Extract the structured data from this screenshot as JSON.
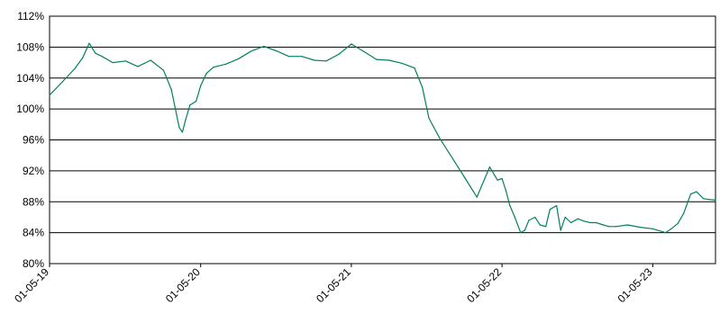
{
  "chart_data": {
    "type": "line",
    "title": "",
    "xlabel": "",
    "ylabel": "",
    "ylim": [
      80,
      112
    ],
    "y_ticks": [
      80,
      84,
      88,
      92,
      96,
      100,
      104,
      108,
      112
    ],
    "y_tick_labels": [
      "80%",
      "84%",
      "88%",
      "92%",
      "96%",
      "100%",
      "104%",
      "108%",
      "112%"
    ],
    "x_tick_dates": [
      "2019-05-01",
      "2020-05-01",
      "2021-05-01",
      "2022-05-01",
      "2023-05-01"
    ],
    "x_tick_labels": [
      "01-05-19",
      "01-05-20",
      "01-05-21",
      "01-05-22",
      "01-05-23"
    ],
    "xlim": [
      "2019-05-01",
      "2023-09-30"
    ],
    "grid": "horizontal",
    "legend": "none",
    "line_color": "#008060",
    "series": [
      {
        "x": [
          "2019-05-01",
          "2019-06-01",
          "2019-07-01",
          "2019-07-20",
          "2019-08-05",
          "2019-08-20",
          "2019-09-05",
          "2019-10-01",
          "2019-11-01",
          "2019-12-01",
          "2020-01-01",
          "2020-02-01",
          "2020-02-20",
          "2020-03-10",
          "2020-03-18",
          "2020-03-25",
          "2020-04-05",
          "2020-04-20",
          "2020-05-01",
          "2020-05-15",
          "2020-06-01",
          "2020-07-01",
          "2020-08-01",
          "2020-09-01",
          "2020-10-01",
          "2020-11-01",
          "2020-12-01",
          "2021-01-01",
          "2021-02-01",
          "2021-03-01",
          "2021-04-01",
          "2021-05-01",
          "2021-06-01",
          "2021-07-01",
          "2021-08-01",
          "2021-09-01",
          "2021-10-01",
          "2021-10-20",
          "2021-11-05",
          "2021-12-01",
          "2022-01-01",
          "2022-02-01",
          "2022-03-01",
          "2022-04-01",
          "2022-04-20",
          "2022-05-01",
          "2022-05-10",
          "2022-05-20",
          "2022-06-01",
          "2022-06-15",
          "2022-06-25",
          "2022-07-05",
          "2022-07-20",
          "2022-08-01",
          "2022-08-15",
          "2022-08-25",
          "2022-09-10",
          "2022-09-20",
          "2022-10-01",
          "2022-10-15",
          "2022-11-01",
          "2022-11-15",
          "2022-12-01",
          "2022-12-15",
          "2023-01-01",
          "2023-01-15",
          "2023-02-01",
          "2023-03-01",
          "2023-04-01",
          "2023-05-01",
          "2023-06-01",
          "2023-06-15",
          "2023-07-01",
          "2023-07-15",
          "2023-08-01",
          "2023-08-15",
          "2023-09-01",
          "2023-09-15",
          "2023-09-30"
        ],
        "values": [
          101.8,
          103.5,
          105.2,
          106.6,
          108.5,
          107.2,
          106.8,
          106.0,
          106.2,
          105.5,
          106.3,
          105.0,
          102.5,
          97.6,
          97.0,
          98.5,
          100.5,
          101.0,
          103.0,
          104.6,
          105.4,
          105.8,
          106.5,
          107.5,
          108.1,
          107.5,
          106.8,
          106.8,
          106.3,
          106.2,
          107.1,
          108.4,
          107.4,
          106.4,
          106.3,
          105.9,
          105.3,
          102.8,
          98.8,
          96.2,
          93.6,
          91.0,
          88.6,
          92.5,
          90.8,
          91.0,
          89.5,
          87.5,
          86.0,
          84.0,
          84.3,
          85.6,
          86.0,
          85.0,
          84.8,
          87.0,
          87.5,
          84.3,
          86.0,
          85.3,
          85.8,
          85.5,
          85.3,
          85.3,
          85.0,
          84.8,
          84.8,
          85.0,
          84.7,
          84.5,
          84.0,
          84.5,
          85.2,
          86.5,
          89.0,
          89.3,
          88.4,
          88.3,
          88.2
        ]
      }
    ]
  }
}
